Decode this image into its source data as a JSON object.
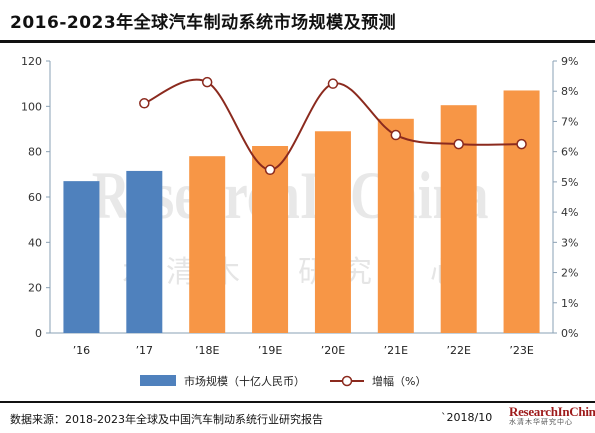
{
  "header": {
    "title": "2016-2023年全球汽车制动系统市场规模及预测"
  },
  "footer": {
    "source": "数据来源：2018-2023年全球及中国汽车制动系统行业研究报告",
    "date": "`2018/10",
    "logo_main": "ResearchInChina",
    "logo_sub": "水清木华研究中心"
  },
  "watermark": {
    "main": "ResearchInChina",
    "sub": "水清木华研究中心"
  },
  "colors": {
    "bar_actual": "#4f81bd",
    "bar_forecast": "#f79646",
    "line": "#8b2a1e",
    "marker_fill": "#ffffff"
  },
  "chart_data": {
    "type": "bar",
    "categories": [
      "’16",
      "’17",
      "’18E",
      "’19E",
      "’20E",
      "’21E",
      "’22E",
      "’23E"
    ],
    "series": [
      {
        "name": "市场规模（十亿人民币）",
        "type": "bar",
        "axis": "left",
        "values": [
          67,
          71.5,
          78,
          82.5,
          89,
          94.5,
          100.5,
          107
        ],
        "forecast_from_index": 2
      },
      {
        "name": "增幅（%）",
        "type": "line",
        "axis": "right",
        "values": [
          null,
          7.6,
          8.3,
          5.4,
          8.25,
          6.55,
          6.25,
          6.25
        ]
      }
    ],
    "y_left": {
      "ticks": [
        "0",
        "20",
        "40",
        "60",
        "80",
        "100",
        "120"
      ],
      "ylim": [
        0,
        120
      ]
    },
    "y_right": {
      "ticks": [
        "0%",
        "1%",
        "2%",
        "3%",
        "4%",
        "5%",
        "6%",
        "7%",
        "8%",
        "9%"
      ],
      "ylim": [
        0,
        9
      ]
    },
    "legend": {
      "placement": "bottom",
      "entries": [
        "市场规模（十亿人民币）",
        "增幅（%）"
      ]
    },
    "grid": false
  }
}
